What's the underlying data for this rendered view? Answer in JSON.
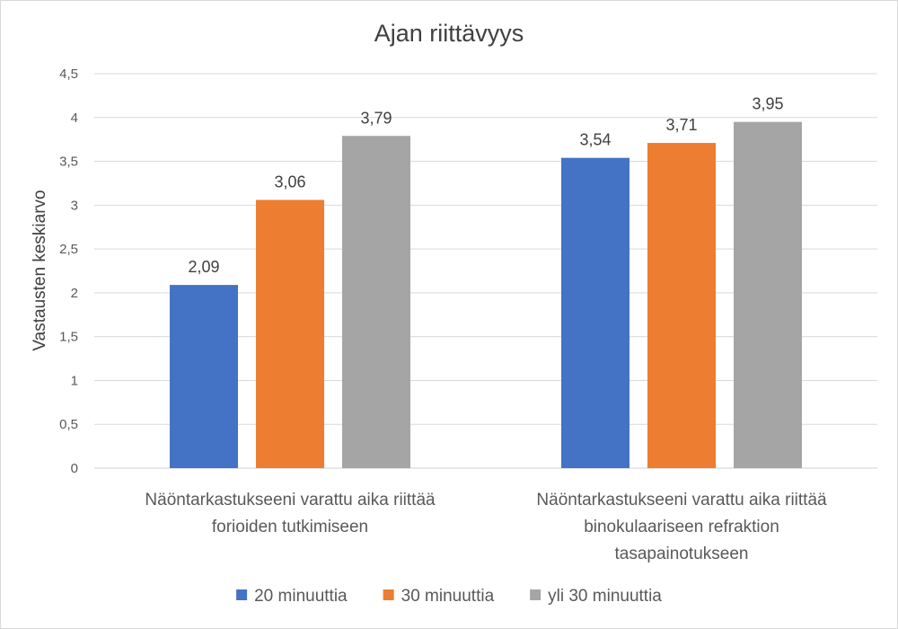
{
  "chart_data": {
    "type": "bar",
    "title": "Ajan riittävyys",
    "xlabel": "",
    "ylabel": "Vastausten keskiarvo",
    "ylim": [
      0,
      4.5
    ],
    "yticks": [
      "0",
      "0,5",
      "1",
      "1,5",
      "2",
      "2,5",
      "3",
      "3,5",
      "4",
      "4,5"
    ],
    "categories": [
      [
        "Näöntarkastukseeni varattu aika riittää",
        "forioiden tutkimiseen"
      ],
      [
        "Näöntarkastukseeni varattu aika riittää",
        "binokulaariseen refraktion",
        "tasapainotukseen"
      ]
    ],
    "series": [
      {
        "name": "20 minuuttia",
        "color": "#4472C4",
        "values": [
          2.09,
          3.54
        ],
        "labels": [
          "2,09",
          "3,54"
        ]
      },
      {
        "name": "30 minuuttia",
        "color": "#ED7D31",
        "values": [
          3.06,
          3.71
        ],
        "labels": [
          "3,06",
          "3,71"
        ]
      },
      {
        "name": "yli 30 minuuttia",
        "color": "#A5A5A5",
        "values": [
          3.79,
          3.95
        ],
        "labels": [
          "3,79",
          "3,95"
        ]
      }
    ],
    "grid": true,
    "legend": "bottom"
  }
}
